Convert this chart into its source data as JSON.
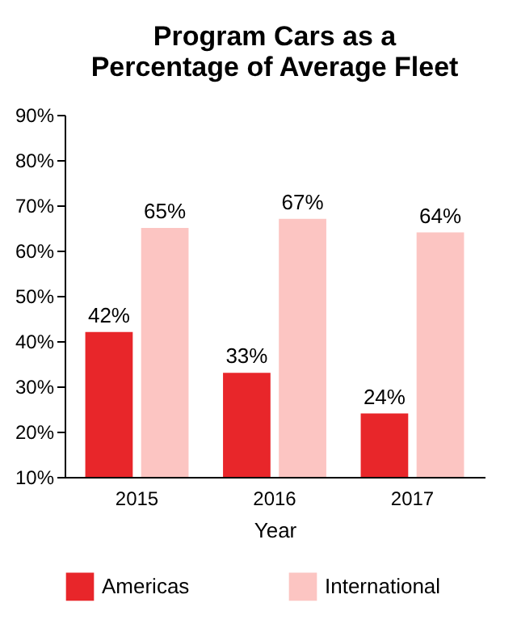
{
  "chart_data": {
    "type": "bar",
    "title": "Program Cars as a Percentage of Average Fleet",
    "xlabel": "Year",
    "categories": [
      "2015",
      "2016",
      "2017"
    ],
    "series": [
      {
        "name": "Americas",
        "color": "#e8262a",
        "values": [
          42,
          33,
          24
        ],
        "value_labels": [
          "42%",
          "33%",
          "24%"
        ]
      },
      {
        "name": "International",
        "color": "#fcc5c2",
        "values": [
          65,
          67,
          64
        ],
        "value_labels": [
          "65%",
          "67%",
          "64%"
        ]
      }
    ],
    "ylim": [
      10,
      90
    ],
    "yticks": [
      {
        "value": 10,
        "label": "10%"
      },
      {
        "value": 20,
        "label": "20%"
      },
      {
        "value": 30,
        "label": "30%"
      },
      {
        "value": 40,
        "label": "40%"
      },
      {
        "value": 50,
        "label": "50%"
      },
      {
        "value": 60,
        "label": "60%"
      },
      {
        "value": 70,
        "label": "70%"
      },
      {
        "value": 80,
        "label": "80%"
      },
      {
        "value": 90,
        "label": "90%"
      }
    ],
    "grid": false,
    "legend": "bottom"
  }
}
